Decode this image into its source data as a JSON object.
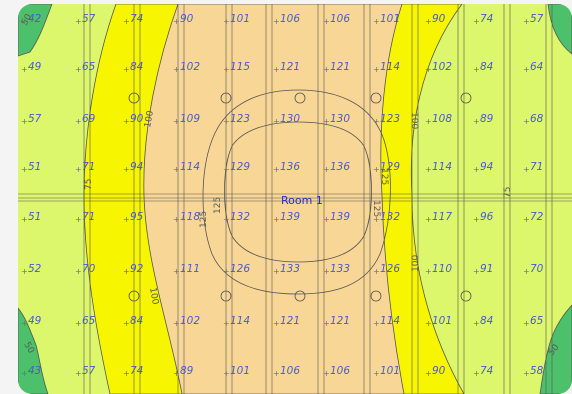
{
  "room_label": "Room 1",
  "colors": {
    "band_green": "#4cc06a",
    "band_lightgreen": "#dcf76b",
    "band_yellow": "#f7f500",
    "band_peach": "#f8d695",
    "line": "#555555",
    "text_blue": "#4a5ad0"
  },
  "contour_labels": [
    "50",
    "75",
    "100",
    "125"
  ],
  "rows": [
    [
      "42",
      "57",
      "74",
      "90",
      "101",
      "106",
      "106",
      "101",
      "90",
      "74",
      "57"
    ],
    [
      "49",
      "65",
      "84",
      "102",
      "115",
      "121",
      "121",
      "114",
      "102",
      "84",
      "64"
    ],
    [
      "57",
      "69",
      "90",
      "109",
      "123",
      "130",
      "130",
      "123",
      "108",
      "89",
      "68"
    ],
    [
      "51",
      "71",
      "94",
      "114",
      "129",
      "136",
      "136",
      "129",
      "114",
      "94",
      "71"
    ],
    [
      "51",
      "71",
      "95",
      "118",
      "132",
      "139",
      "139",
      "132",
      "117",
      "96",
      "72"
    ],
    [
      "52",
      "70",
      "92",
      "111",
      "126",
      "133",
      "133",
      "126",
      "110",
      "91",
      "70"
    ],
    [
      "49",
      "65",
      "84",
      "102",
      "114",
      "121",
      "121",
      "114",
      "101",
      "84",
      "65"
    ],
    [
      "43",
      "57",
      "74",
      "89",
      "101",
      "106",
      "106",
      "101",
      "90",
      "74",
      "58"
    ]
  ]
}
